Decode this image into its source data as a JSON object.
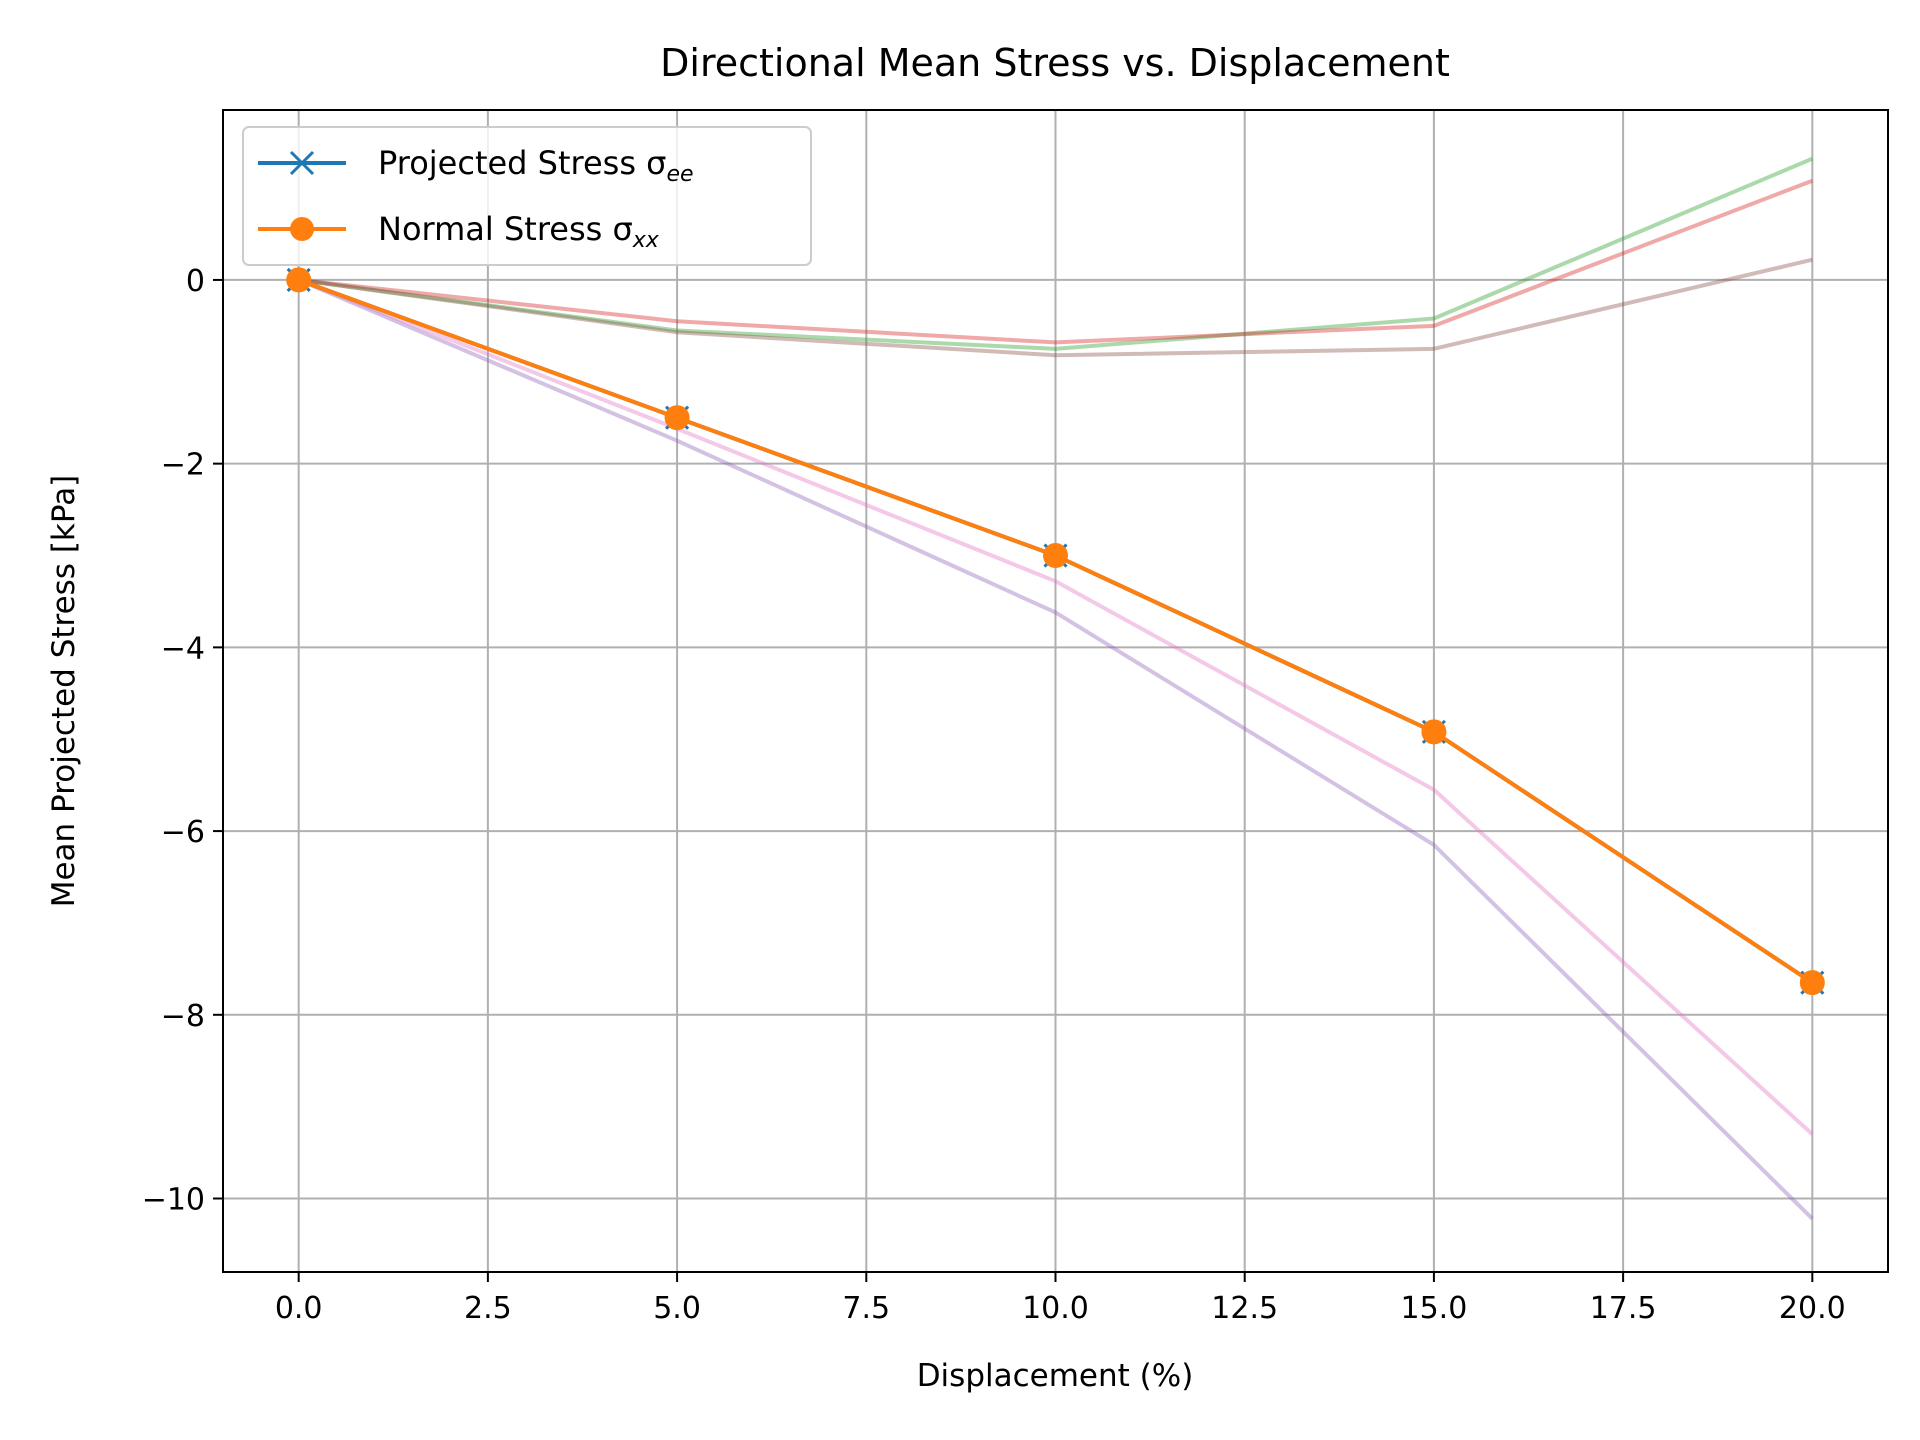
{
  "chart_data": {
    "type": "line",
    "title": "Directional Mean Stress vs. Displacement",
    "xlabel": "Displacement (%)",
    "ylabel": "Mean Projected Stress [kPa]",
    "xlim": [
      -1,
      21
    ],
    "ylim": [
      -10.8,
      1.85
    ],
    "xticks": [
      0,
      2.5,
      5,
      7.5,
      10,
      12.5,
      15,
      17.5,
      20
    ],
    "xtick_labels": [
      "0.0",
      "2.5",
      "5.0",
      "7.5",
      "10.0",
      "12.5",
      "15.0",
      "17.5",
      "20.0"
    ],
    "yticks": [
      0,
      -2,
      -4,
      -6,
      -8,
      -10
    ],
    "ytick_labels": [
      "0",
      "−2",
      "−4",
      "−6",
      "−8",
      "−10"
    ],
    "grid": true,
    "legend_position": "top-left",
    "x": [
      0,
      5,
      10,
      15,
      20
    ],
    "series": [
      {
        "name": "Projected Stress σee",
        "label_main": "Projected Stress σ",
        "label_sub": "ee",
        "color": "#1f77b4",
        "marker": "x",
        "legend": true,
        "alpha": 1.0,
        "values": [
          0,
          -1.5,
          -3.0,
          -4.92,
          -7.65
        ]
      },
      {
        "name": "Normal Stress σxx",
        "label_main": "Normal Stress σ",
        "label_sub": "xx",
        "color": "#ff7f0e",
        "marker": "o",
        "legend": true,
        "alpha": 1.0,
        "values": [
          0,
          -1.5,
          -3.0,
          -4.92,
          -7.65
        ]
      },
      {
        "color": "#2ca02c",
        "marker": "none",
        "legend": false,
        "alpha": 0.4,
        "values": [
          0,
          -0.55,
          -0.75,
          -0.42,
          1.32
        ]
      },
      {
        "color": "#d62728",
        "marker": "none",
        "legend": false,
        "alpha": 0.4,
        "values": [
          0,
          -0.45,
          -0.68,
          -0.5,
          1.08
        ]
      },
      {
        "color": "#9467bd",
        "marker": "none",
        "legend": false,
        "alpha": 0.4,
        "values": [
          0,
          -1.75,
          -3.62,
          -6.15,
          -10.22
        ]
      },
      {
        "color": "#8c564b",
        "marker": "none",
        "legend": false,
        "alpha": 0.4,
        "values": [
          0,
          -0.57,
          -0.82,
          -0.75,
          0.22
        ]
      },
      {
        "color": "#e377c2",
        "marker": "none",
        "legend": false,
        "alpha": 0.4,
        "values": [
          0,
          -1.62,
          -3.28,
          -5.55,
          -9.3
        ]
      }
    ]
  }
}
